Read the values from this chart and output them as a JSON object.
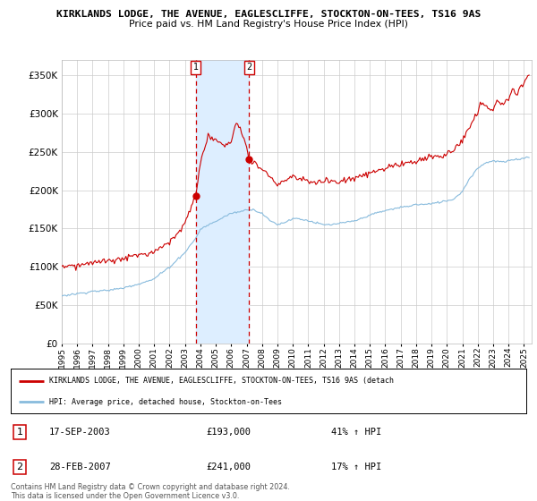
{
  "title1": "KIRKLANDS LODGE, THE AVENUE, EAGLESCLIFFE, STOCKTON-ON-TEES, TS16 9AS",
  "title2": "Price paid vs. HM Land Registry's House Price Index (HPI)",
  "legend_line1": "KIRKLANDS LODGE, THE AVENUE, EAGLESCLIFFE, STOCKTON-ON-TEES, TS16 9AS (detach",
  "legend_line2": "HPI: Average price, detached house, Stockton-on-Tees",
  "table_rows": [
    {
      "num": "1",
      "date": "17-SEP-2003",
      "price": "£193,000",
      "hpi": "41% ↑ HPI"
    },
    {
      "num": "2",
      "date": "28-FEB-2007",
      "price": "£241,000",
      "hpi": "17% ↑ HPI"
    }
  ],
  "footnote": "Contains HM Land Registry data © Crown copyright and database right 2024.\nThis data is licensed under the Open Government Licence v3.0.",
  "sale1_year": 2003.71,
  "sale1_price": 193000,
  "sale2_year": 2007.16,
  "sale2_price": 241000,
  "vline1_year": 2003.71,
  "vline2_year": 2007.16,
  "ylim": [
    0,
    370000
  ],
  "xlim_start": 1995.25,
  "xlim_end": 2025.5,
  "hpi_color": "#88bbdd",
  "price_color": "#cc0000",
  "vline_color": "#cc0000",
  "shade_color": "#ddeeff",
  "background_color": "#ffffff",
  "grid_color": "#cccccc"
}
